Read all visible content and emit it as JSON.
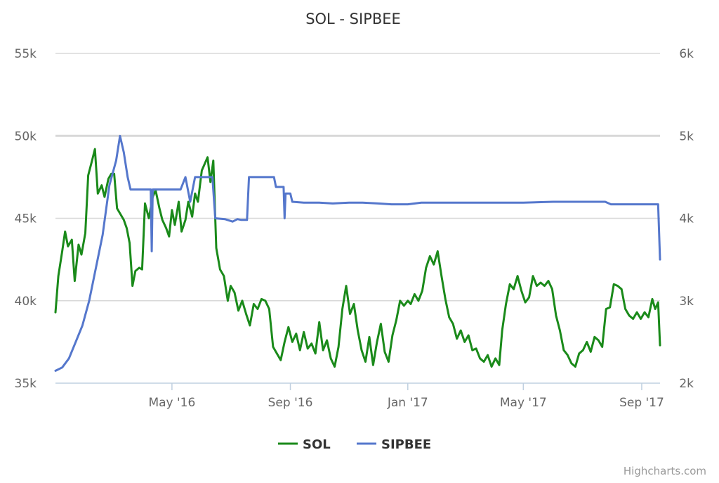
{
  "chart_data": {
    "type": "line",
    "title": "SOL - SIPBEE",
    "credits": "Highcharts.com",
    "grid": true,
    "legend_position": "bottom-center",
    "x_axis": {
      "min": "2016-01-01",
      "max": "2017-09-20",
      "ticks": [
        {
          "date": "2016-05-01",
          "label": "May '16"
        },
        {
          "date": "2016-09-01",
          "label": "Sep '16"
        },
        {
          "date": "2017-01-01",
          "label": "Jan '17"
        },
        {
          "date": "2017-05-01",
          "label": "May '17"
        },
        {
          "date": "2017-09-01",
          "label": "Sep '17"
        }
      ]
    },
    "y_axis_left": {
      "min": 35000,
      "max": 55000,
      "ticks": [
        {
          "value": 35000,
          "label": "35k"
        },
        {
          "value": 40000,
          "label": "40k"
        },
        {
          "value": 45000,
          "label": "45k"
        },
        {
          "value": 50000,
          "label": "50k"
        },
        {
          "value": 55000,
          "label": "55k"
        }
      ]
    },
    "y_axis_right": {
      "min": 2000,
      "max": 6000,
      "ticks": [
        {
          "value": 2000,
          "label": "2k"
        },
        {
          "value": 3000,
          "label": "3k"
        },
        {
          "value": 4000,
          "label": "4k"
        },
        {
          "value": 5000,
          "label": "5k"
        },
        {
          "value": 6000,
          "label": "6k"
        }
      ]
    },
    "series": [
      {
        "name": "SOL",
        "color": "#1a8a1a",
        "axis": "left",
        "points": [
          [
            "2016-01-01",
            39300
          ],
          [
            "2016-01-04",
            41500
          ],
          [
            "2016-01-08",
            43000
          ],
          [
            "2016-01-11",
            44200
          ],
          [
            "2016-01-14",
            43300
          ],
          [
            "2016-01-18",
            43700
          ],
          [
            "2016-01-21",
            41200
          ],
          [
            "2016-01-25",
            43400
          ],
          [
            "2016-01-28",
            42800
          ],
          [
            "2016-02-01",
            44100
          ],
          [
            "2016-02-04",
            47600
          ],
          [
            "2016-02-08",
            48500
          ],
          [
            "2016-02-11",
            49200
          ],
          [
            "2016-02-14",
            46500
          ],
          [
            "2016-02-18",
            47000
          ],
          [
            "2016-02-21",
            46300
          ],
          [
            "2016-02-25",
            47400
          ],
          [
            "2016-02-28",
            47700
          ],
          [
            "2016-03-02",
            47700
          ],
          [
            "2016-03-05",
            45600
          ],
          [
            "2016-03-09",
            45200
          ],
          [
            "2016-03-12",
            44900
          ],
          [
            "2016-03-15",
            44400
          ],
          [
            "2016-03-18",
            43500
          ],
          [
            "2016-03-21",
            40900
          ],
          [
            "2016-03-24",
            41800
          ],
          [
            "2016-03-28",
            42000
          ],
          [
            "2016-03-31",
            41900
          ],
          [
            "2016-04-03",
            45900
          ],
          [
            "2016-04-07",
            45000
          ],
          [
            "2016-04-11",
            46300
          ],
          [
            "2016-04-14",
            46700
          ],
          [
            "2016-04-18",
            45600
          ],
          [
            "2016-04-21",
            44900
          ],
          [
            "2016-04-25",
            44400
          ],
          [
            "2016-04-28",
            43900
          ],
          [
            "2016-05-01",
            45500
          ],
          [
            "2016-05-04",
            44600
          ],
          [
            "2016-05-08",
            46000
          ],
          [
            "2016-05-11",
            44200
          ],
          [
            "2016-05-15",
            44900
          ],
          [
            "2016-05-18",
            46000
          ],
          [
            "2016-05-22",
            45100
          ],
          [
            "2016-05-25",
            46500
          ],
          [
            "2016-05-28",
            46000
          ],
          [
            "2016-06-01",
            47900
          ],
          [
            "2016-06-04",
            48300
          ],
          [
            "2016-06-07",
            48700
          ],
          [
            "2016-06-10",
            47200
          ],
          [
            "2016-06-13",
            48500
          ],
          [
            "2016-06-16",
            43200
          ],
          [
            "2016-06-20",
            41900
          ],
          [
            "2016-06-24",
            41500
          ],
          [
            "2016-06-28",
            40000
          ],
          [
            "2016-07-01",
            40900
          ],
          [
            "2016-07-05",
            40500
          ],
          [
            "2016-07-09",
            39400
          ],
          [
            "2016-07-13",
            40000
          ],
          [
            "2016-07-17",
            39200
          ],
          [
            "2016-07-21",
            38500
          ],
          [
            "2016-07-25",
            39800
          ],
          [
            "2016-07-29",
            39500
          ],
          [
            "2016-08-02",
            40100
          ],
          [
            "2016-08-06",
            40000
          ],
          [
            "2016-08-10",
            39500
          ],
          [
            "2016-08-14",
            37200
          ],
          [
            "2016-08-18",
            36800
          ],
          [
            "2016-08-22",
            36400
          ],
          [
            "2016-08-26",
            37500
          ],
          [
            "2016-08-30",
            38400
          ],
          [
            "2016-09-03",
            37500
          ],
          [
            "2016-09-07",
            38000
          ],
          [
            "2016-09-11",
            37000
          ],
          [
            "2016-09-15",
            38100
          ],
          [
            "2016-09-19",
            37100
          ],
          [
            "2016-09-23",
            37400
          ],
          [
            "2016-09-27",
            36800
          ],
          [
            "2016-10-01",
            38700
          ],
          [
            "2016-10-05",
            37000
          ],
          [
            "2016-10-09",
            37600
          ],
          [
            "2016-10-13",
            36500
          ],
          [
            "2016-10-17",
            36000
          ],
          [
            "2016-10-21",
            37200
          ],
          [
            "2016-10-25",
            39500
          ],
          [
            "2016-10-29",
            40900
          ],
          [
            "2016-11-02",
            39200
          ],
          [
            "2016-11-06",
            39800
          ],
          [
            "2016-11-10",
            38200
          ],
          [
            "2016-11-14",
            37000
          ],
          [
            "2016-11-18",
            36300
          ],
          [
            "2016-11-22",
            37800
          ],
          [
            "2016-11-26",
            36100
          ],
          [
            "2016-11-30",
            37500
          ],
          [
            "2016-12-04",
            38600
          ],
          [
            "2016-12-08",
            36900
          ],
          [
            "2016-12-12",
            36300
          ],
          [
            "2016-12-16",
            37900
          ],
          [
            "2016-12-20",
            38800
          ],
          [
            "2016-12-24",
            40000
          ],
          [
            "2016-12-28",
            39700
          ],
          [
            "2017-01-01",
            40000
          ],
          [
            "2017-01-04",
            39800
          ],
          [
            "2017-01-08",
            40400
          ],
          [
            "2017-01-12",
            40000
          ],
          [
            "2017-01-16",
            40600
          ],
          [
            "2017-01-20",
            42000
          ],
          [
            "2017-01-24",
            42700
          ],
          [
            "2017-01-28",
            42200
          ],
          [
            "2017-02-01",
            43000
          ],
          [
            "2017-02-05",
            41500
          ],
          [
            "2017-02-09",
            40100
          ],
          [
            "2017-02-13",
            39000
          ],
          [
            "2017-02-17",
            38600
          ],
          [
            "2017-02-21",
            37700
          ],
          [
            "2017-02-25",
            38200
          ],
          [
            "2017-03-01",
            37500
          ],
          [
            "2017-03-05",
            37900
          ],
          [
            "2017-03-09",
            37000
          ],
          [
            "2017-03-13",
            37100
          ],
          [
            "2017-03-17",
            36500
          ],
          [
            "2017-03-21",
            36300
          ],
          [
            "2017-03-25",
            36700
          ],
          [
            "2017-03-29",
            36000
          ],
          [
            "2017-04-02",
            36500
          ],
          [
            "2017-04-06",
            36100
          ],
          [
            "2017-04-09",
            38200
          ],
          [
            "2017-04-13",
            39800
          ],
          [
            "2017-04-17",
            41000
          ],
          [
            "2017-04-21",
            40700
          ],
          [
            "2017-04-25",
            41500
          ],
          [
            "2017-04-29",
            40600
          ],
          [
            "2017-05-03",
            39900
          ],
          [
            "2017-05-07",
            40200
          ],
          [
            "2017-05-11",
            41500
          ],
          [
            "2017-05-15",
            40900
          ],
          [
            "2017-05-19",
            41100
          ],
          [
            "2017-05-23",
            40900
          ],
          [
            "2017-05-27",
            41200
          ],
          [
            "2017-05-31",
            40700
          ],
          [
            "2017-06-04",
            39100
          ],
          [
            "2017-06-08",
            38200
          ],
          [
            "2017-06-12",
            37000
          ],
          [
            "2017-06-16",
            36700
          ],
          [
            "2017-06-20",
            36200
          ],
          [
            "2017-06-24",
            36000
          ],
          [
            "2017-06-28",
            36800
          ],
          [
            "2017-07-02",
            37000
          ],
          [
            "2017-07-06",
            37500
          ],
          [
            "2017-07-10",
            36900
          ],
          [
            "2017-07-14",
            37800
          ],
          [
            "2017-07-18",
            37600
          ],
          [
            "2017-07-22",
            37200
          ],
          [
            "2017-07-26",
            39500
          ],
          [
            "2017-07-30",
            39600
          ],
          [
            "2017-08-03",
            41000
          ],
          [
            "2017-08-07",
            40900
          ],
          [
            "2017-08-11",
            40700
          ],
          [
            "2017-08-15",
            39500
          ],
          [
            "2017-08-19",
            39100
          ],
          [
            "2017-08-23",
            38900
          ],
          [
            "2017-08-27",
            39300
          ],
          [
            "2017-08-31",
            38900
          ],
          [
            "2017-09-04",
            39300
          ],
          [
            "2017-09-08",
            39000
          ],
          [
            "2017-09-12",
            40100
          ],
          [
            "2017-09-15",
            39500
          ],
          [
            "2017-09-18",
            39900
          ],
          [
            "2017-09-20",
            37300
          ]
        ]
      },
      {
        "name": "SIPBEE",
        "color": "#5577cc",
        "axis": "right",
        "points": [
          [
            "2016-01-01",
            2150
          ],
          [
            "2016-01-08",
            2190
          ],
          [
            "2016-01-15",
            2300
          ],
          [
            "2016-01-22",
            2500
          ],
          [
            "2016-01-29",
            2700
          ],
          [
            "2016-02-05",
            3000
          ],
          [
            "2016-02-12",
            3400
          ],
          [
            "2016-02-19",
            3800
          ],
          [
            "2016-02-26",
            4400
          ],
          [
            "2016-03-04",
            4700
          ],
          [
            "2016-03-08",
            5000
          ],
          [
            "2016-03-12",
            4800
          ],
          [
            "2016-03-16",
            4500
          ],
          [
            "2016-03-19",
            4350
          ],
          [
            "2016-03-25",
            4350
          ],
          [
            "2016-04-01",
            4350
          ],
          [
            "2016-04-09",
            4350
          ],
          [
            "2016-04-10",
            3600
          ],
          [
            "2016-04-11",
            4350
          ],
          [
            "2016-05-10",
            4350
          ],
          [
            "2016-05-15",
            4500
          ],
          [
            "2016-05-20",
            4200
          ],
          [
            "2016-05-25",
            4500
          ],
          [
            "2016-06-12",
            4500
          ],
          [
            "2016-06-15",
            4000
          ],
          [
            "2016-06-25",
            3990
          ],
          [
            "2016-07-03",
            3960
          ],
          [
            "2016-07-08",
            3990
          ],
          [
            "2016-07-12",
            3980
          ],
          [
            "2016-07-18",
            3980
          ],
          [
            "2016-07-20",
            4500
          ],
          [
            "2016-08-15",
            4500
          ],
          [
            "2016-08-17",
            4380
          ],
          [
            "2016-08-25",
            4380
          ],
          [
            "2016-08-26",
            4000
          ],
          [
            "2016-08-27",
            4300
          ],
          [
            "2016-09-01",
            4300
          ],
          [
            "2016-09-03",
            4200
          ],
          [
            "2016-09-15",
            4190
          ],
          [
            "2016-10-01",
            4190
          ],
          [
            "2016-10-15",
            4180
          ],
          [
            "2016-11-01",
            4190
          ],
          [
            "2016-11-15",
            4190
          ],
          [
            "2016-12-01",
            4180
          ],
          [
            "2016-12-15",
            4170
          ],
          [
            "2017-01-01",
            4170
          ],
          [
            "2017-01-15",
            4190
          ],
          [
            "2017-02-01",
            4190
          ],
          [
            "2017-03-01",
            4190
          ],
          [
            "2017-04-01",
            4190
          ],
          [
            "2017-05-01",
            4190
          ],
          [
            "2017-06-01",
            4200
          ],
          [
            "2017-07-01",
            4200
          ],
          [
            "2017-07-25",
            4200
          ],
          [
            "2017-07-31",
            4170
          ],
          [
            "2017-08-15",
            4170
          ],
          [
            "2017-09-01",
            4170
          ],
          [
            "2017-09-18",
            4170
          ],
          [
            "2017-09-20",
            3500
          ]
        ]
      }
    ]
  }
}
